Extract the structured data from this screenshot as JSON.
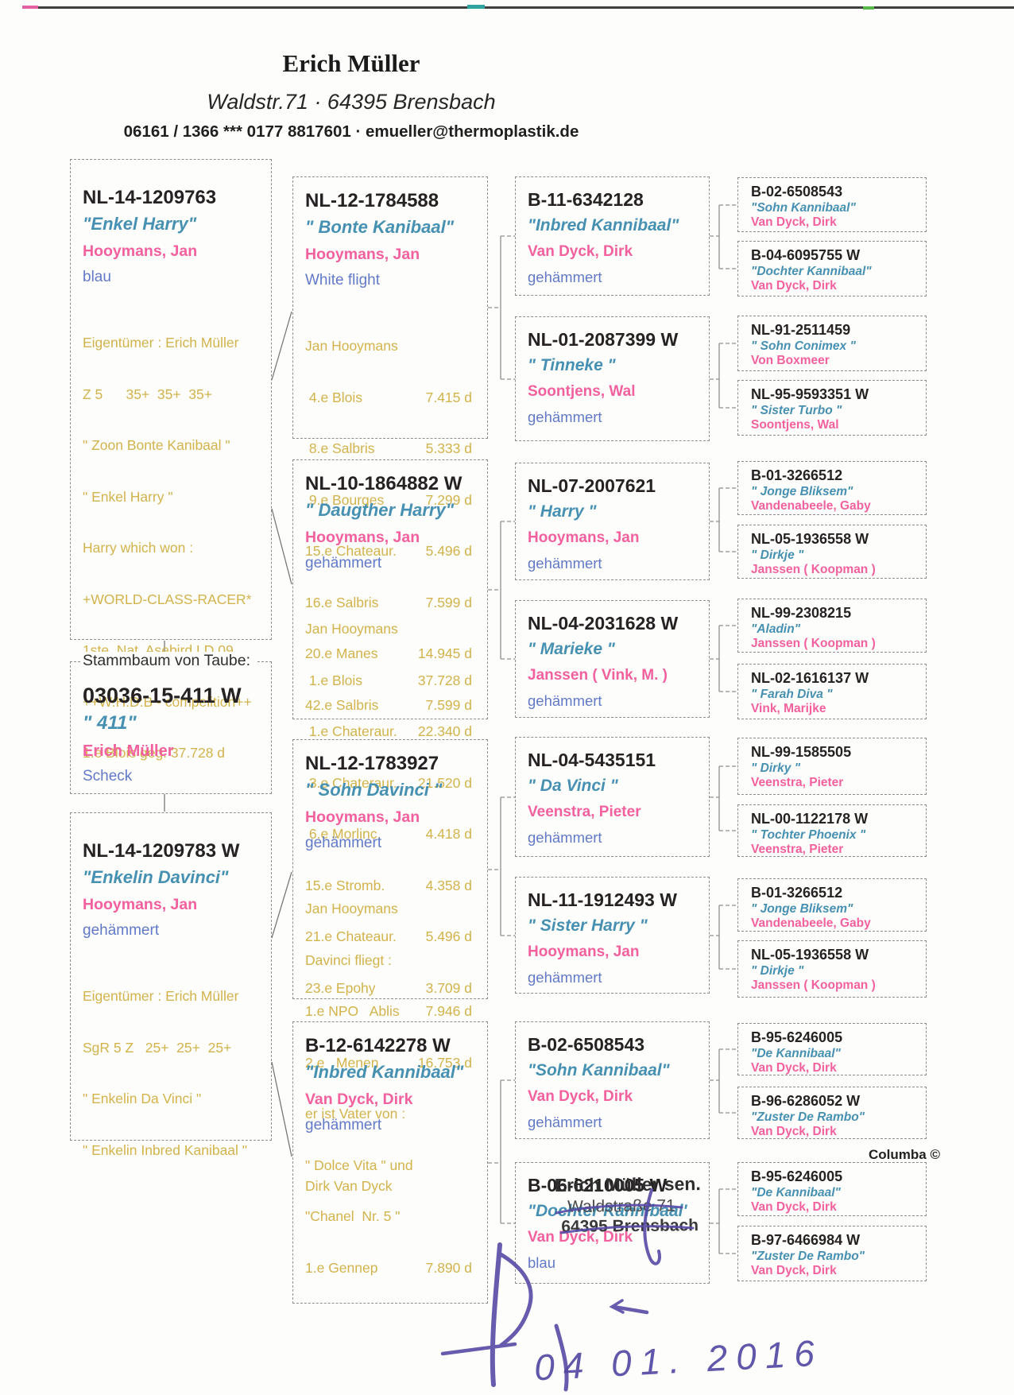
{
  "header": {
    "name": "Erich Müller",
    "address": "Waldstr.71   ·   64395 Brensbach",
    "contact": "06161 / 1366 ***  0177 8817601  ·  emueller@thermoplastik.de"
  },
  "subject_label": "Stammbaum von Taube:",
  "subject": {
    "ring": "03036-15-411 W",
    "name": "\" 411\"",
    "breeder": "Erich Müller",
    "color": "Scheck"
  },
  "gen1": [
    {
      "ring": "NL-14-1209763",
      "name": "\"Enkel Harry\"",
      "breeder": "Hooymans, Jan",
      "color": "blau",
      "notes": [
        "Eigentümer : Erich Müller",
        "Z 5      35+  35+  35+",
        "\" Zoon Bonte Kanibaal \"",
        "\" Enkel Harry \"",
        "Harry which won :",
        "+WORLD-CLASS-RACER*",
        "1ste. Nat. Asebird LD 09",
        "++W:H:D:B - compelition++",
        "1.e Blois geg. 37.728 d"
      ]
    },
    {
      "ring": "NL-14-1209783 W",
      "name": "\"Enkelin Davinci\"",
      "breeder": "Hooymans, Jan",
      "color": "gehämmert",
      "notes": [
        "Eigentümer : Erich Müller",
        "SgR 5 Z   25+  25+  25+",
        "\" Enkelin Da Vinci \"",
        "\" Enkelin Inbred Kanibaal \""
      ]
    }
  ],
  "gen2": [
    {
      "ring": "NL-12-1784588",
      "name": "\" Bonte Kanibaal\"",
      "breeder": "Hooymans, Jan",
      "color": "White flight",
      "notes_heading": "Jan Hooymans",
      "results": [
        {
          "l": " 4.e Blois",
          "r": "7.415 d"
        },
        {
          "l": " 8.e Salbris",
          "r": "5.333 d"
        },
        {
          "l": " 9.e Bourges",
          "r": "7.299 d"
        },
        {
          "l": "15.e Chateaur.",
          "r": "5.496 d"
        },
        {
          "l": "16.e Salbris",
          "r": "7.599 d"
        },
        {
          "l": "20.e Manes",
          "r": "14.945 d"
        },
        {
          "l": "42.e Salbris",
          "r": "7.599 d"
        }
      ]
    },
    {
      "ring": "NL-10-1864882 W",
      "name": "\" Daugther Harry\"",
      "breeder": "Hooymans, Jan",
      "color": "gehämmert",
      "notes_heading": "Jan Hooymans",
      "results": [
        {
          "l": " 1.e Blois",
          "r": "37.728 d"
        },
        {
          "l": " 1.e Chateraur.",
          "r": "22.340 d"
        },
        {
          "l": " 3.e Chateraur.",
          "r": "21.520 d"
        },
        {
          "l": " 6.e Morlinc.",
          "r": "4.418 d"
        },
        {
          "l": "15.e Stromb.",
          "r": "4.358 d"
        },
        {
          "l": "21.e Chateaur.",
          "r": "5.496 d"
        },
        {
          "l": "23.e Epohy",
          "r": "3.709 d"
        }
      ]
    },
    {
      "ring": "NL-12-1783927",
      "name": "\" Sohn Davinci \"",
      "breeder": "Hooymans, Jan",
      "color": "gehämmert",
      "notes_heading": "Jan Hooymans",
      "results": [
        {
          "l": "Davinci fliegt :",
          "r": ""
        },
        {
          "l": "1.e NPO   Ablis",
          "r": "7.946 d"
        },
        {
          "l": "2.e   Menen",
          "r": "16.753 d"
        },
        {
          "l": "er ist Vater von :",
          "r": ""
        },
        {
          "l": "\" Dolce Vita \" und",
          "r": ""
        },
        {
          "l": "\"Chanel  Nr. 5 \"",
          "r": ""
        },
        {
          "l": "1.e Gennep",
          "r": "7.890 d"
        }
      ]
    },
    {
      "ring": "B-12-6142278 W",
      "name": "\"Inbred Kannibaal\"",
      "breeder": "Van Dyck, Dirk",
      "color": "gehämmert",
      "notes_heading": "Dirk Van Dyck",
      "results": []
    }
  ],
  "gen3": [
    {
      "ring": "B-11-6342128",
      "name": "\"Inbred Kannibaal\"",
      "breeder": "Van Dyck, Dirk",
      "color": "gehämmert"
    },
    {
      "ring": "NL-01-2087399 W",
      "name": "\" Tinneke \"",
      "breeder": "Soontjens, Wal",
      "color": "gehämmert"
    },
    {
      "ring": "NL-07-2007621",
      "name": "\" Harry \"",
      "breeder": "Hooymans, Jan",
      "color": "gehämmert"
    },
    {
      "ring": "NL-04-2031628 W",
      "name": "\" Marieke \"",
      "breeder": "Janssen ( Vink, M. )",
      "color": "gehämmert"
    },
    {
      "ring": "NL-04-5435151",
      "name": "\" Da Vinci \"",
      "breeder": "Veenstra, Pieter",
      "color": "gehämmert"
    },
    {
      "ring": "NL-11-1912493 W",
      "name": "\" Sister Harry \"",
      "breeder": "Hooymans, Jan",
      "color": "gehämmert"
    },
    {
      "ring": "B-02-6508543",
      "name": "\"Sohn Kannibaal\"",
      "breeder": "Van Dyck, Dirk",
      "color": "gehämmert"
    },
    {
      "ring": "B-06-6210005 W",
      "name": "\"Dochter Kannibaal'",
      "breeder": "Van Dyck, Dirk",
      "color": "blau"
    }
  ],
  "gen4": [
    {
      "ring": "B-02-6508543",
      "name": "\"Sohn Kannibaal\"",
      "breeder": "Van Dyck, Dirk"
    },
    {
      "ring": "B-04-6095755 W",
      "name": "\"Dochter Kannibaal\"",
      "breeder": "Van Dyck, Dirk"
    },
    {
      "ring": "NL-91-2511459",
      "name": "\" Sohn Conimex \"",
      "breeder": "Von Boxmeer"
    },
    {
      "ring": "NL-95-9593351 W",
      "name": "\" Sister Turbo \"",
      "breeder": "Soontjens, Wal"
    },
    {
      "ring": "B-01-3266512",
      "name": "\" Jonge Bliksem\"",
      "breeder": "Vandenabeele, Gaby"
    },
    {
      "ring": "NL-05-1936558 W",
      "name": "\" Dirkje \"",
      "breeder": "Janssen ( Koopman )"
    },
    {
      "ring": "NL-99-2308215",
      "name": "\"Aladin\"",
      "breeder": "Janssen ( Koopman )"
    },
    {
      "ring": "NL-02-1616137 W",
      "name": "\" Farah Diva \"",
      "breeder": "Vink, Marijke"
    },
    {
      "ring": "NL-99-1585505",
      "name": "\" Dirky \"",
      "breeder": "Veenstra, Pieter"
    },
    {
      "ring": "NL-00-1122178 W",
      "name": "\" Tochter Phoenix \"",
      "breeder": "Veenstra, Pieter"
    },
    {
      "ring": "B-01-3266512",
      "name": "\" Jonge Bliksem\"",
      "breeder": "Vandenabeele, Gaby"
    },
    {
      "ring": "NL-05-1936558 W",
      "name": "\" Dirkje \"",
      "breeder": "Janssen ( Koopman )"
    },
    {
      "ring": "B-95-6246005",
      "name": "\"De Kannibaal\"",
      "breeder": "Van Dyck, Dirk"
    },
    {
      "ring": "B-96-6286052 W",
      "name": "\"Zuster De Rambo\"",
      "breeder": "Van Dyck, Dirk"
    },
    {
      "ring": "B-95-6246005",
      "name": "\"De Kannibaal\"",
      "breeder": "Van Dyck, Dirk"
    },
    {
      "ring": "B-97-6466984 W",
      "name": "\"Zuster De Rambo\"",
      "breeder": "Van Dyck, Dirk"
    }
  ],
  "footer": {
    "columba": "Columba ©",
    "stamp_line1": "Erich Müller sen.",
    "stamp_line2": "Waldstraße 71",
    "stamp_line3": "64395 Brensbach",
    "handwritten_date": "04 01. 2016"
  },
  "colors": {
    "ring_text": "#262122",
    "pigeon_name": "#4690b2",
    "breeder": "#f2609e",
    "color_word": "#6279c8",
    "notes": "#d2b34c",
    "ink": "#564aa5"
  }
}
